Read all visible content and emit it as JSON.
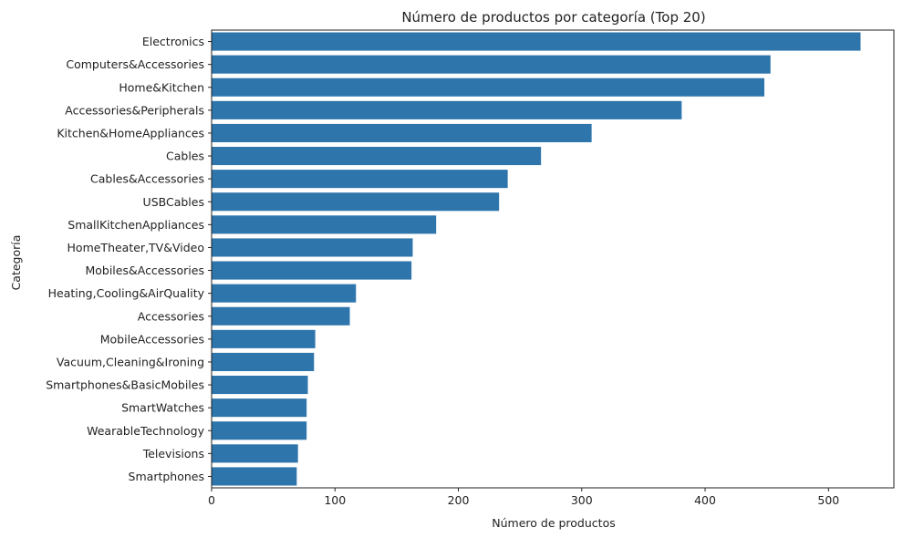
{
  "chart_data": {
    "type": "bar",
    "orientation": "horizontal",
    "title": "Número de productos por categoría (Top 20)",
    "xlabel": "Número de productos",
    "ylabel": "Categoría",
    "xlim": [
      0,
      553
    ],
    "xticks": [
      0,
      100,
      200,
      300,
      400,
      500
    ],
    "grid": false,
    "bar_color": "#2e75ac",
    "categories": [
      "Electronics",
      "Computers&Accessories",
      "Home&Kitchen",
      "Accessories&Peripherals",
      "Kitchen&HomeAppliances",
      "Cables",
      "Cables&Accessories",
      "USBCables",
      "SmallKitchenAppliances",
      "HomeTheater,TV&Video",
      "Mobiles&Accessories",
      "Heating,Cooling&AirQuality",
      "Accessories",
      "MobileAccessories",
      "Vacuum,Cleaning&Ironing",
      "Smartphones&BasicMobiles",
      "SmartWatches",
      "WearableTechnology",
      "Televisions",
      "Smartphones"
    ],
    "values": [
      526,
      453,
      448,
      381,
      308,
      267,
      240,
      233,
      182,
      163,
      162,
      117,
      112,
      84,
      83,
      78,
      77,
      77,
      70,
      69
    ]
  }
}
